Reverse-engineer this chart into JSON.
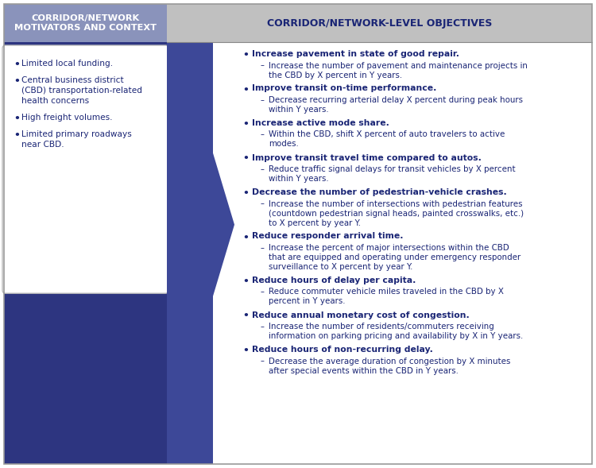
{
  "fig_width": 7.5,
  "fig_height": 5.89,
  "dpi": 100,
  "bg_color": "#ffffff",
  "dark_blue": "#2d3580",
  "left_header_bg": "#8a93bb",
  "right_header_bg": "#c0c0c0",
  "text_dark_blue": "#1a2575",
  "left_panel": {
    "header": "CORRIDOR/NETWORK\nMOTIVATORS AND CONTEXT",
    "bullets": [
      "Limited local funding.",
      "Central business district\n(CBD) transportation-related\nhealth concerns",
      "High freight volumes.",
      "Limited primary roadways\nnear CBD."
    ]
  },
  "right_panel": {
    "header": "CORRIDOR/NETWORK-LEVEL OBJECTIVES",
    "objectives": [
      {
        "bold": "Increase pavement in state of good repair.",
        "sub": "Increase the number of pavement and maintenance projects in\nthe CBD by X percent in Y years."
      },
      {
        "bold": "Improve transit on-time performance.",
        "sub": "Decrease recurring arterial delay X percent during peak hours\nwithin Y years."
      },
      {
        "bold": "Increase active mode share.",
        "sub": "Within the CBD, shift X percent of auto travelers to active\nmodes."
      },
      {
        "bold": "Improve transit travel time compared to autos.",
        "sub": "Reduce traffic signal delays for transit vehicles by X percent\nwithin Y years."
      },
      {
        "bold": "Decrease the number of pedestrian-vehicle crashes.",
        "sub": "Increase the number of intersections with pedestrian features\n(countdown pedestrian signal heads, painted crosswalks, etc.)\nto X percent by year Y."
      },
      {
        "bold": "Reduce responder arrival time.",
        "sub": "Increase the percent of major intersections within the CBD\nthat are equipped and operating under emergency responder\nsurveillance to X percent by year Y."
      },
      {
        "bold": "Reduce hours of delay per capita.",
        "sub": "Reduce commuter vehicle miles traveled in the CBD by X\npercent in Y years."
      },
      {
        "bold": "Reduce annual monetary cost of congestion.",
        "sub": "Increase the number of residents/commuters receiving\ninformation on parking pricing and availability by X in Y years."
      },
      {
        "bold": "Reduce hours of non-recurring delay.",
        "sub": "Decrease the average duration of congestion by X minutes\nafter special events within the CBD in Y years."
      }
    ]
  }
}
